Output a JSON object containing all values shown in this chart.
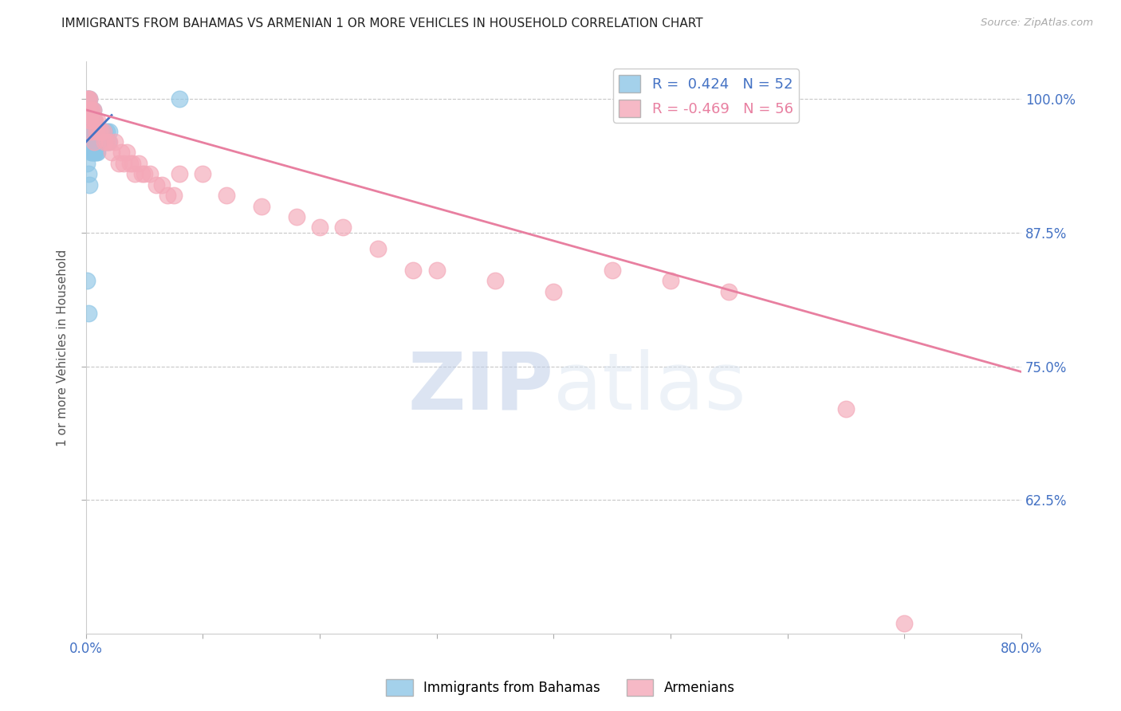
{
  "title": "IMMIGRANTS FROM BAHAMAS VS ARMENIAN 1 OR MORE VEHICLES IN HOUSEHOLD CORRELATION CHART",
  "source": "Source: ZipAtlas.com",
  "ylabel": "1 or more Vehicles in Household",
  "ytick_labels": [
    "62.5%",
    "75.0%",
    "87.5%",
    "100.0%"
  ],
  "ytick_values": [
    0.625,
    0.75,
    0.875,
    1.0
  ],
  "xlim": [
    0.0,
    0.8
  ],
  "ylim": [
    0.5,
    1.035
  ],
  "bahamas_R": 0.424,
  "bahamas_N": 52,
  "armenian_R": -0.469,
  "armenian_N": 56,
  "bahamas_color": "#8ec6e6",
  "armenian_color": "#f4a8b8",
  "trendline_bahamas_color": "#4472c4",
  "trendline_armenian_color": "#e87fa0",
  "legend_label_bahamas": "Immigrants from Bahamas",
  "legend_label_armenian": "Armenians",
  "watermark_zip": "ZIP",
  "watermark_atlas": "atlas",
  "title_color": "#222222",
  "axis_label_color": "#555555",
  "tick_color": "#4472c4",
  "grid_color": "#c8c8c8",
  "bahamas_x": [
    0.001,
    0.001,
    0.001,
    0.002,
    0.002,
    0.002,
    0.002,
    0.003,
    0.003,
    0.003,
    0.003,
    0.003,
    0.004,
    0.004,
    0.004,
    0.004,
    0.004,
    0.005,
    0.005,
    0.005,
    0.005,
    0.006,
    0.006,
    0.006,
    0.006,
    0.007,
    0.007,
    0.007,
    0.007,
    0.008,
    0.008,
    0.008,
    0.009,
    0.009,
    0.01,
    0.01,
    0.011,
    0.012,
    0.013,
    0.014,
    0.015,
    0.016,
    0.017,
    0.018,
    0.019,
    0.02,
    0.001,
    0.002,
    0.003,
    0.001,
    0.002,
    0.08
  ],
  "bahamas_y": [
    1.0,
    0.99,
    0.98,
    1.0,
    0.99,
    0.98,
    0.97,
    1.0,
    0.99,
    0.98,
    0.97,
    0.96,
    0.99,
    0.98,
    0.97,
    0.96,
    0.95,
    0.98,
    0.97,
    0.96,
    0.95,
    0.99,
    0.98,
    0.97,
    0.95,
    0.98,
    0.97,
    0.96,
    0.95,
    0.97,
    0.96,
    0.95,
    0.96,
    0.95,
    0.97,
    0.95,
    0.96,
    0.97,
    0.96,
    0.97,
    0.96,
    0.97,
    0.96,
    0.97,
    0.96,
    0.97,
    0.94,
    0.93,
    0.92,
    0.83,
    0.8,
    1.0
  ],
  "armenian_x": [
    0.001,
    0.001,
    0.002,
    0.002,
    0.003,
    0.003,
    0.004,
    0.004,
    0.005,
    0.005,
    0.006,
    0.007,
    0.007,
    0.008,
    0.009,
    0.01,
    0.012,
    0.013,
    0.015,
    0.016,
    0.018,
    0.02,
    0.022,
    0.025,
    0.028,
    0.03,
    0.032,
    0.035,
    0.038,
    0.04,
    0.042,
    0.045,
    0.048,
    0.05,
    0.055,
    0.06,
    0.065,
    0.07,
    0.075,
    0.08,
    0.1,
    0.12,
    0.15,
    0.18,
    0.2,
    0.22,
    0.25,
    0.28,
    0.3,
    0.35,
    0.4,
    0.45,
    0.5,
    0.55,
    0.65,
    0.7
  ],
  "armenian_y": [
    1.0,
    0.99,
    1.0,
    0.99,
    1.0,
    0.98,
    0.99,
    0.98,
    0.99,
    0.97,
    0.99,
    0.98,
    0.96,
    0.98,
    0.97,
    0.98,
    0.97,
    0.97,
    0.97,
    0.96,
    0.96,
    0.96,
    0.95,
    0.96,
    0.94,
    0.95,
    0.94,
    0.95,
    0.94,
    0.94,
    0.93,
    0.94,
    0.93,
    0.93,
    0.93,
    0.92,
    0.92,
    0.91,
    0.91,
    0.93,
    0.93,
    0.91,
    0.9,
    0.89,
    0.88,
    0.88,
    0.86,
    0.84,
    0.84,
    0.83,
    0.82,
    0.84,
    0.83,
    0.82,
    0.71,
    0.51
  ],
  "bahamas_trendline_x": [
    0.0,
    0.022
  ],
  "bahamas_trendline_y": [
    0.96,
    0.985
  ],
  "armenian_trendline_x": [
    0.0,
    0.8
  ],
  "armenian_trendline_y": [
    0.99,
    0.745
  ]
}
